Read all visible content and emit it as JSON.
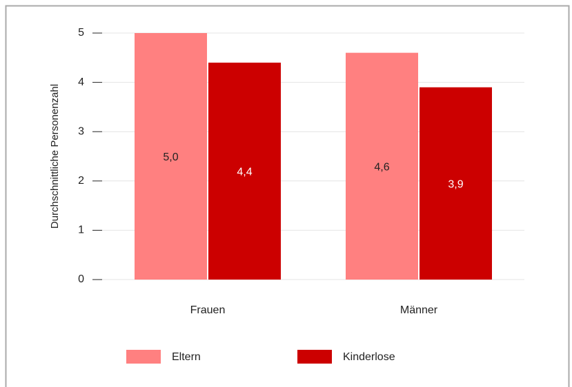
{
  "chart_data": {
    "type": "bar",
    "ylabel": "Durchschnittliche Personenzahl",
    "categories": [
      "Frauen",
      "Männer"
    ],
    "series": [
      {
        "name": "Eltern",
        "color": "#ff8080",
        "label_color": "#222222",
        "values": [
          5.0,
          4.6
        ],
        "value_labels": [
          "5,0",
          "4,6"
        ]
      },
      {
        "name": "Kinderlose",
        "color": "#cc0000",
        "label_color": "#ffffff",
        "values": [
          4.4,
          3.9
        ],
        "value_labels": [
          "4,4",
          "3,9"
        ]
      }
    ],
    "ylim": [
      0,
      5
    ],
    "yticks": [
      0,
      1,
      2,
      3,
      4,
      5
    ],
    "grid": true,
    "legend": "bottom"
  }
}
